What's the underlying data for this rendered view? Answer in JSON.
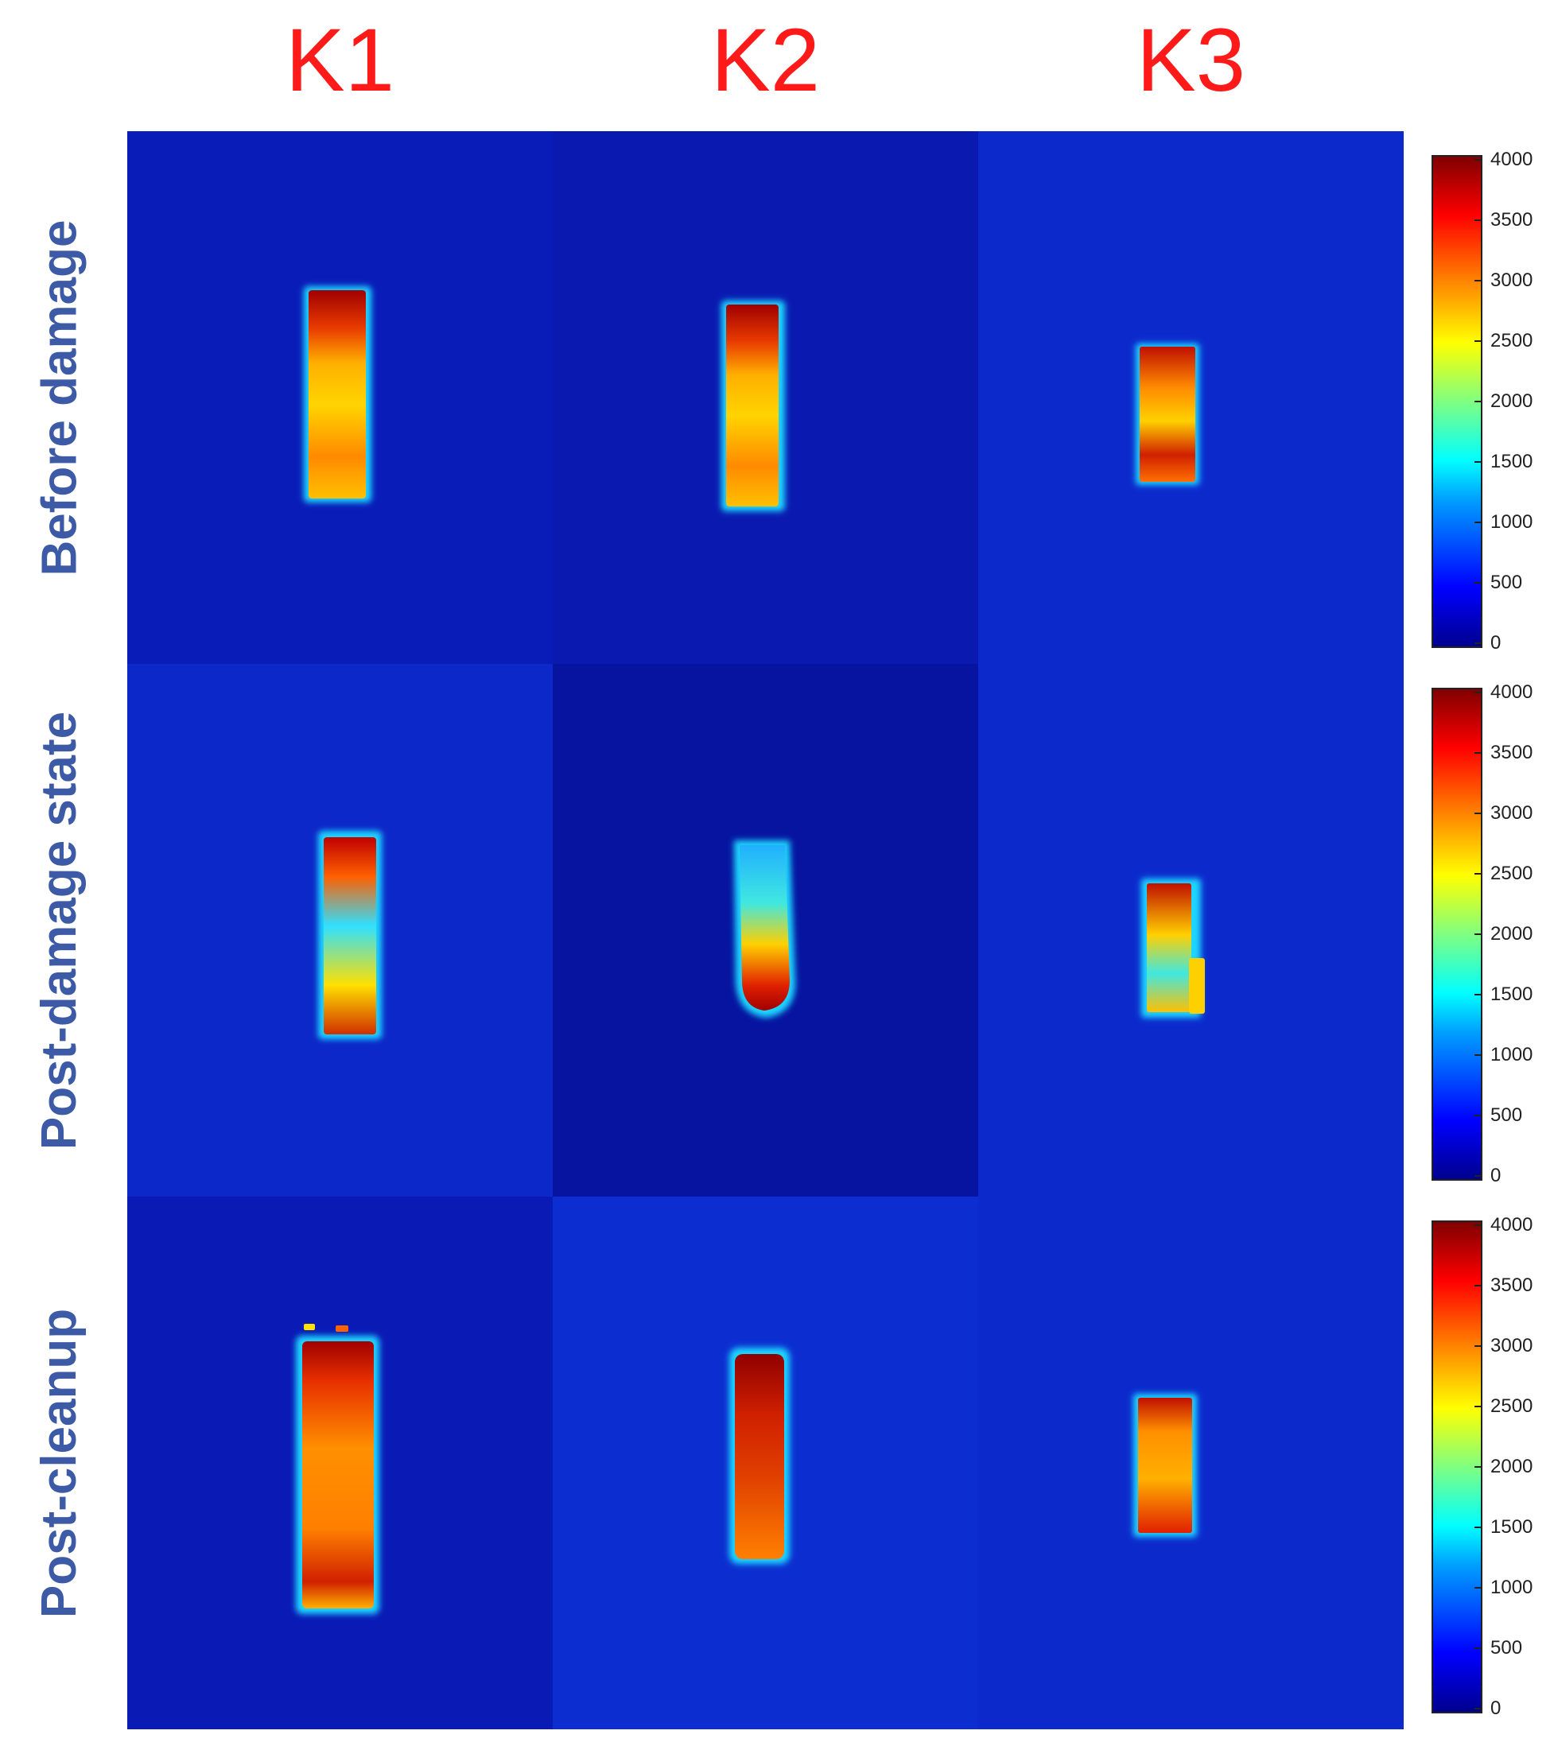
{
  "columns": [
    {
      "label": "K1"
    },
    {
      "label": "K2"
    },
    {
      "label": "K3"
    }
  ],
  "rows": [
    {
      "label": "Before damage"
    },
    {
      "label": "Post-damage state"
    },
    {
      "label": "Post-cleanup"
    }
  ],
  "colors": {
    "column_title": "#ff1a1a",
    "row_label": "#3d5aa6",
    "background_low": "#0a1ec8",
    "colormap": "jet"
  },
  "colorbar": {
    "ticks": [
      "4000",
      "3500",
      "3000",
      "2500",
      "2000",
      "1500",
      "1000",
      "500",
      "0"
    ]
  }
}
